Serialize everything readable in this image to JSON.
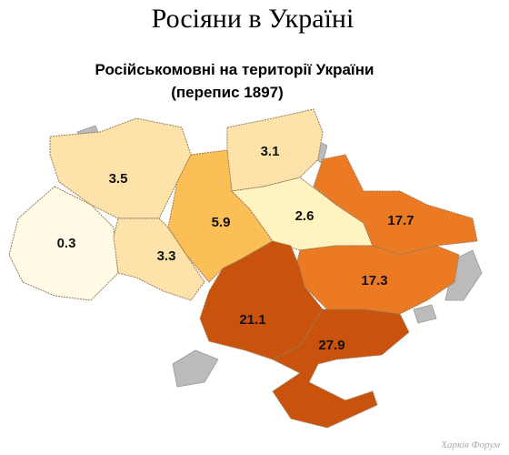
{
  "title": "Росіяни в Україні",
  "subtitle": "Російськомовні на території України",
  "note": "(перепис 1897)",
  "regions": [
    {
      "value": 3.5,
      "color": "#fde3aa"
    },
    {
      "value": 3.1,
      "color": "#fde3aa"
    },
    {
      "value": 0.3,
      "color": "#fffbe6"
    },
    {
      "value": 3.3,
      "color": "#fde3aa"
    },
    {
      "value": 5.9,
      "color": "#fcbf55"
    },
    {
      "value": 2.6,
      "color": "#fff3c0"
    },
    {
      "value": 17.7,
      "color": "#ec7a22"
    },
    {
      "value": 17.3,
      "color": "#ec7a22"
    },
    {
      "value": 21.1,
      "color": "#c9530c"
    },
    {
      "value": 27.9,
      "color": "#c9530c"
    }
  ],
  "watermark": "Харків Форум"
}
